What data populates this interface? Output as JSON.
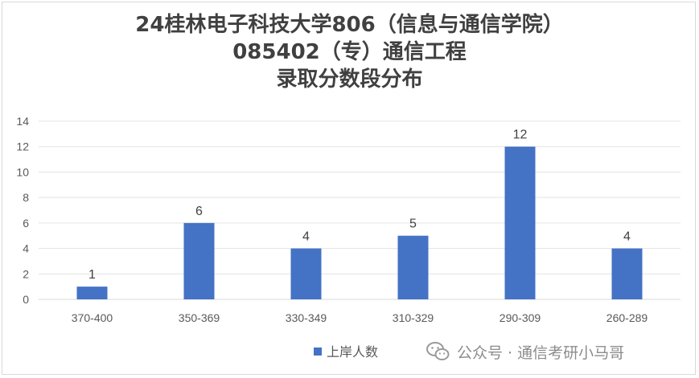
{
  "chart_data": {
    "type": "bar",
    "title_lines": [
      "24桂林电子科技大学806（信息与通信学院）",
      "085402（专）通信工程",
      "录取分数段分布"
    ],
    "categories": [
      "370-400",
      "350-369",
      "330-349",
      "310-329",
      "290-309",
      "260-289"
    ],
    "series": [
      {
        "name": "上岸人数",
        "values": [
          1,
          6,
          4,
          5,
          12,
          4
        ],
        "color": "#4472C4"
      }
    ],
    "y_ticks": [
      0,
      2,
      4,
      6,
      8,
      10,
      12,
      14
    ],
    "ylim": [
      0,
      14
    ],
    "grid": true,
    "legend_position": "bottom",
    "data_labels": true
  },
  "watermark": {
    "icon": "wechat-icon",
    "text": "公众号 · 通信考研小马哥"
  }
}
